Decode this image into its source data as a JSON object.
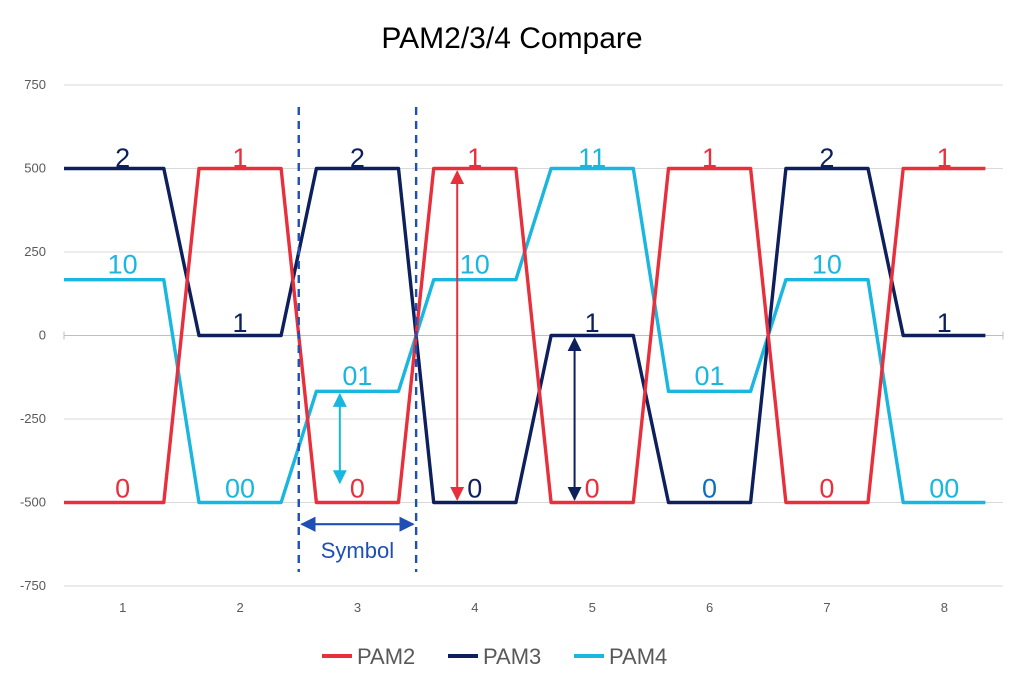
{
  "title": "PAM2/3/4 Compare",
  "chart_data": {
    "type": "line",
    "title": "PAM2/3/4 Compare",
    "x_ticks": [
      "1",
      "2",
      "3",
      "4",
      "5",
      "6",
      "7",
      "8"
    ],
    "y_ticks": [
      750,
      500,
      250,
      0,
      -250,
      -500,
      -750
    ],
    "ylim": [
      -750,
      750
    ],
    "grid": "horizontal",
    "legend_position": "bottom",
    "series": [
      {
        "name": "PAM2",
        "color": "#e8303c",
        "points": [
          [
            0.5,
            -500
          ],
          [
            1.35,
            -500
          ],
          [
            1.65,
            500
          ],
          [
            2.35,
            500
          ],
          [
            2.65,
            -500
          ],
          [
            3.35,
            -500
          ],
          [
            3.65,
            500
          ],
          [
            4.35,
            500
          ],
          [
            4.65,
            -500
          ],
          [
            5.35,
            -500
          ],
          [
            5.65,
            500
          ],
          [
            6.35,
            500
          ],
          [
            6.65,
            -500
          ],
          [
            7.35,
            -500
          ],
          [
            7.65,
            500
          ],
          [
            8.35,
            500
          ]
        ],
        "symbols": [
          "0",
          "1",
          "0",
          "1",
          "0",
          "1",
          "0",
          "1"
        ]
      },
      {
        "name": "PAM3",
        "color": "#0d1f5c",
        "points": [
          [
            0.5,
            500
          ],
          [
            1.35,
            500
          ],
          [
            1.65,
            0
          ],
          [
            2.35,
            0
          ],
          [
            2.65,
            500
          ],
          [
            3.35,
            500
          ],
          [
            3.65,
            -500
          ],
          [
            4.35,
            -500
          ],
          [
            4.65,
            0
          ],
          [
            5.35,
            0
          ],
          [
            5.65,
            -500
          ],
          [
            6.35,
            -500
          ],
          [
            6.65,
            500
          ],
          [
            7.35,
            500
          ],
          [
            7.65,
            0
          ],
          [
            8.35,
            0
          ]
        ],
        "symbols": [
          "2",
          "1",
          "2",
          "0",
          "1",
          "0",
          "2",
          "1"
        ]
      },
      {
        "name": "PAM4",
        "color": "#19b7e0",
        "points": [
          [
            0.5,
            167
          ],
          [
            1.35,
            167
          ],
          [
            1.65,
            -500
          ],
          [
            2.35,
            -500
          ],
          [
            2.65,
            -167
          ],
          [
            3.35,
            -167
          ],
          [
            3.65,
            167
          ],
          [
            4.35,
            167
          ],
          [
            4.65,
            500
          ],
          [
            5.35,
            500
          ],
          [
            5.65,
            -167
          ],
          [
            6.35,
            -167
          ],
          [
            6.65,
            167
          ],
          [
            7.35,
            167
          ],
          [
            7.65,
            -500
          ],
          [
            8.35,
            -500
          ]
        ],
        "symbols": [
          "10",
          "00",
          "01",
          "10",
          "11",
          "01",
          "10",
          "00"
        ]
      }
    ],
    "symbol_labels": [
      {
        "text": "2",
        "x": 1.0,
        "y": 535,
        "color": "#0d1f5c"
      },
      {
        "text": "1",
        "x": 2.0,
        "y": 535,
        "color": "#e8303c"
      },
      {
        "text": "2",
        "x": 3.0,
        "y": 535,
        "color": "#0d1f5c"
      },
      {
        "text": "1",
        "x": 4.0,
        "y": 535,
        "color": "#e8303c"
      },
      {
        "text": "11",
        "x": 5.0,
        "y": 535,
        "color": "#19b7e0"
      },
      {
        "text": "1",
        "x": 6.0,
        "y": 535,
        "color": "#e8303c"
      },
      {
        "text": "2",
        "x": 7.0,
        "y": 535,
        "color": "#0d1f5c"
      },
      {
        "text": "1",
        "x": 8.0,
        "y": 535,
        "color": "#e8303c"
      },
      {
        "text": "10",
        "x": 1.0,
        "y": 215,
        "color": "#19b7e0"
      },
      {
        "text": "10",
        "x": 4.0,
        "y": 215,
        "color": "#19b7e0"
      },
      {
        "text": "10",
        "x": 7.0,
        "y": 215,
        "color": "#19b7e0"
      },
      {
        "text": "1",
        "x": 2.0,
        "y": 40,
        "color": "#0d1f5c"
      },
      {
        "text": "1",
        "x": 5.0,
        "y": 40,
        "color": "#0d1f5c"
      },
      {
        "text": "1",
        "x": 8.0,
        "y": 40,
        "color": "#0d1f5c"
      },
      {
        "text": "01",
        "x": 3.0,
        "y": -118,
        "color": "#19b7e0"
      },
      {
        "text": "01",
        "x": 6.0,
        "y": -118,
        "color": "#19b7e0"
      },
      {
        "text": "0",
        "x": 1.0,
        "y": -455,
        "color": "#e8303c"
      },
      {
        "text": "00",
        "x": 2.0,
        "y": -455,
        "color": "#19b7e0"
      },
      {
        "text": "0",
        "x": 3.0,
        "y": -455,
        "color": "#e8303c"
      },
      {
        "text": "0",
        "x": 4.0,
        "y": -455,
        "color": "#0d1f5c"
      },
      {
        "text": "0",
        "x": 5.0,
        "y": -455,
        "color": "#e8303c"
      },
      {
        "text": "0",
        "x": 6.0,
        "y": -455,
        "color": "#0d6fc0"
      },
      {
        "text": "0",
        "x": 7.0,
        "y": -455,
        "color": "#e8303c"
      },
      {
        "text": "00",
        "x": 8.0,
        "y": -455,
        "color": "#19b7e0"
      }
    ],
    "annotations": {
      "symbol_boundaries": [
        2.5,
        3.5
      ],
      "boundary_color": "#1f4fb5",
      "symbol_label": "Symbol",
      "symbol_arrow_y": -565,
      "amplitude_arrows": [
        {
          "x": 3.85,
          "from": -500,
          "to": 500,
          "color": "#e8303c"
        },
        {
          "x": 4.85,
          "from": -500,
          "to": 0,
          "color": "#0d1f5c"
        },
        {
          "x": 2.85,
          "from": -450,
          "to": -167,
          "color": "#19b7e0"
        }
      ]
    }
  }
}
